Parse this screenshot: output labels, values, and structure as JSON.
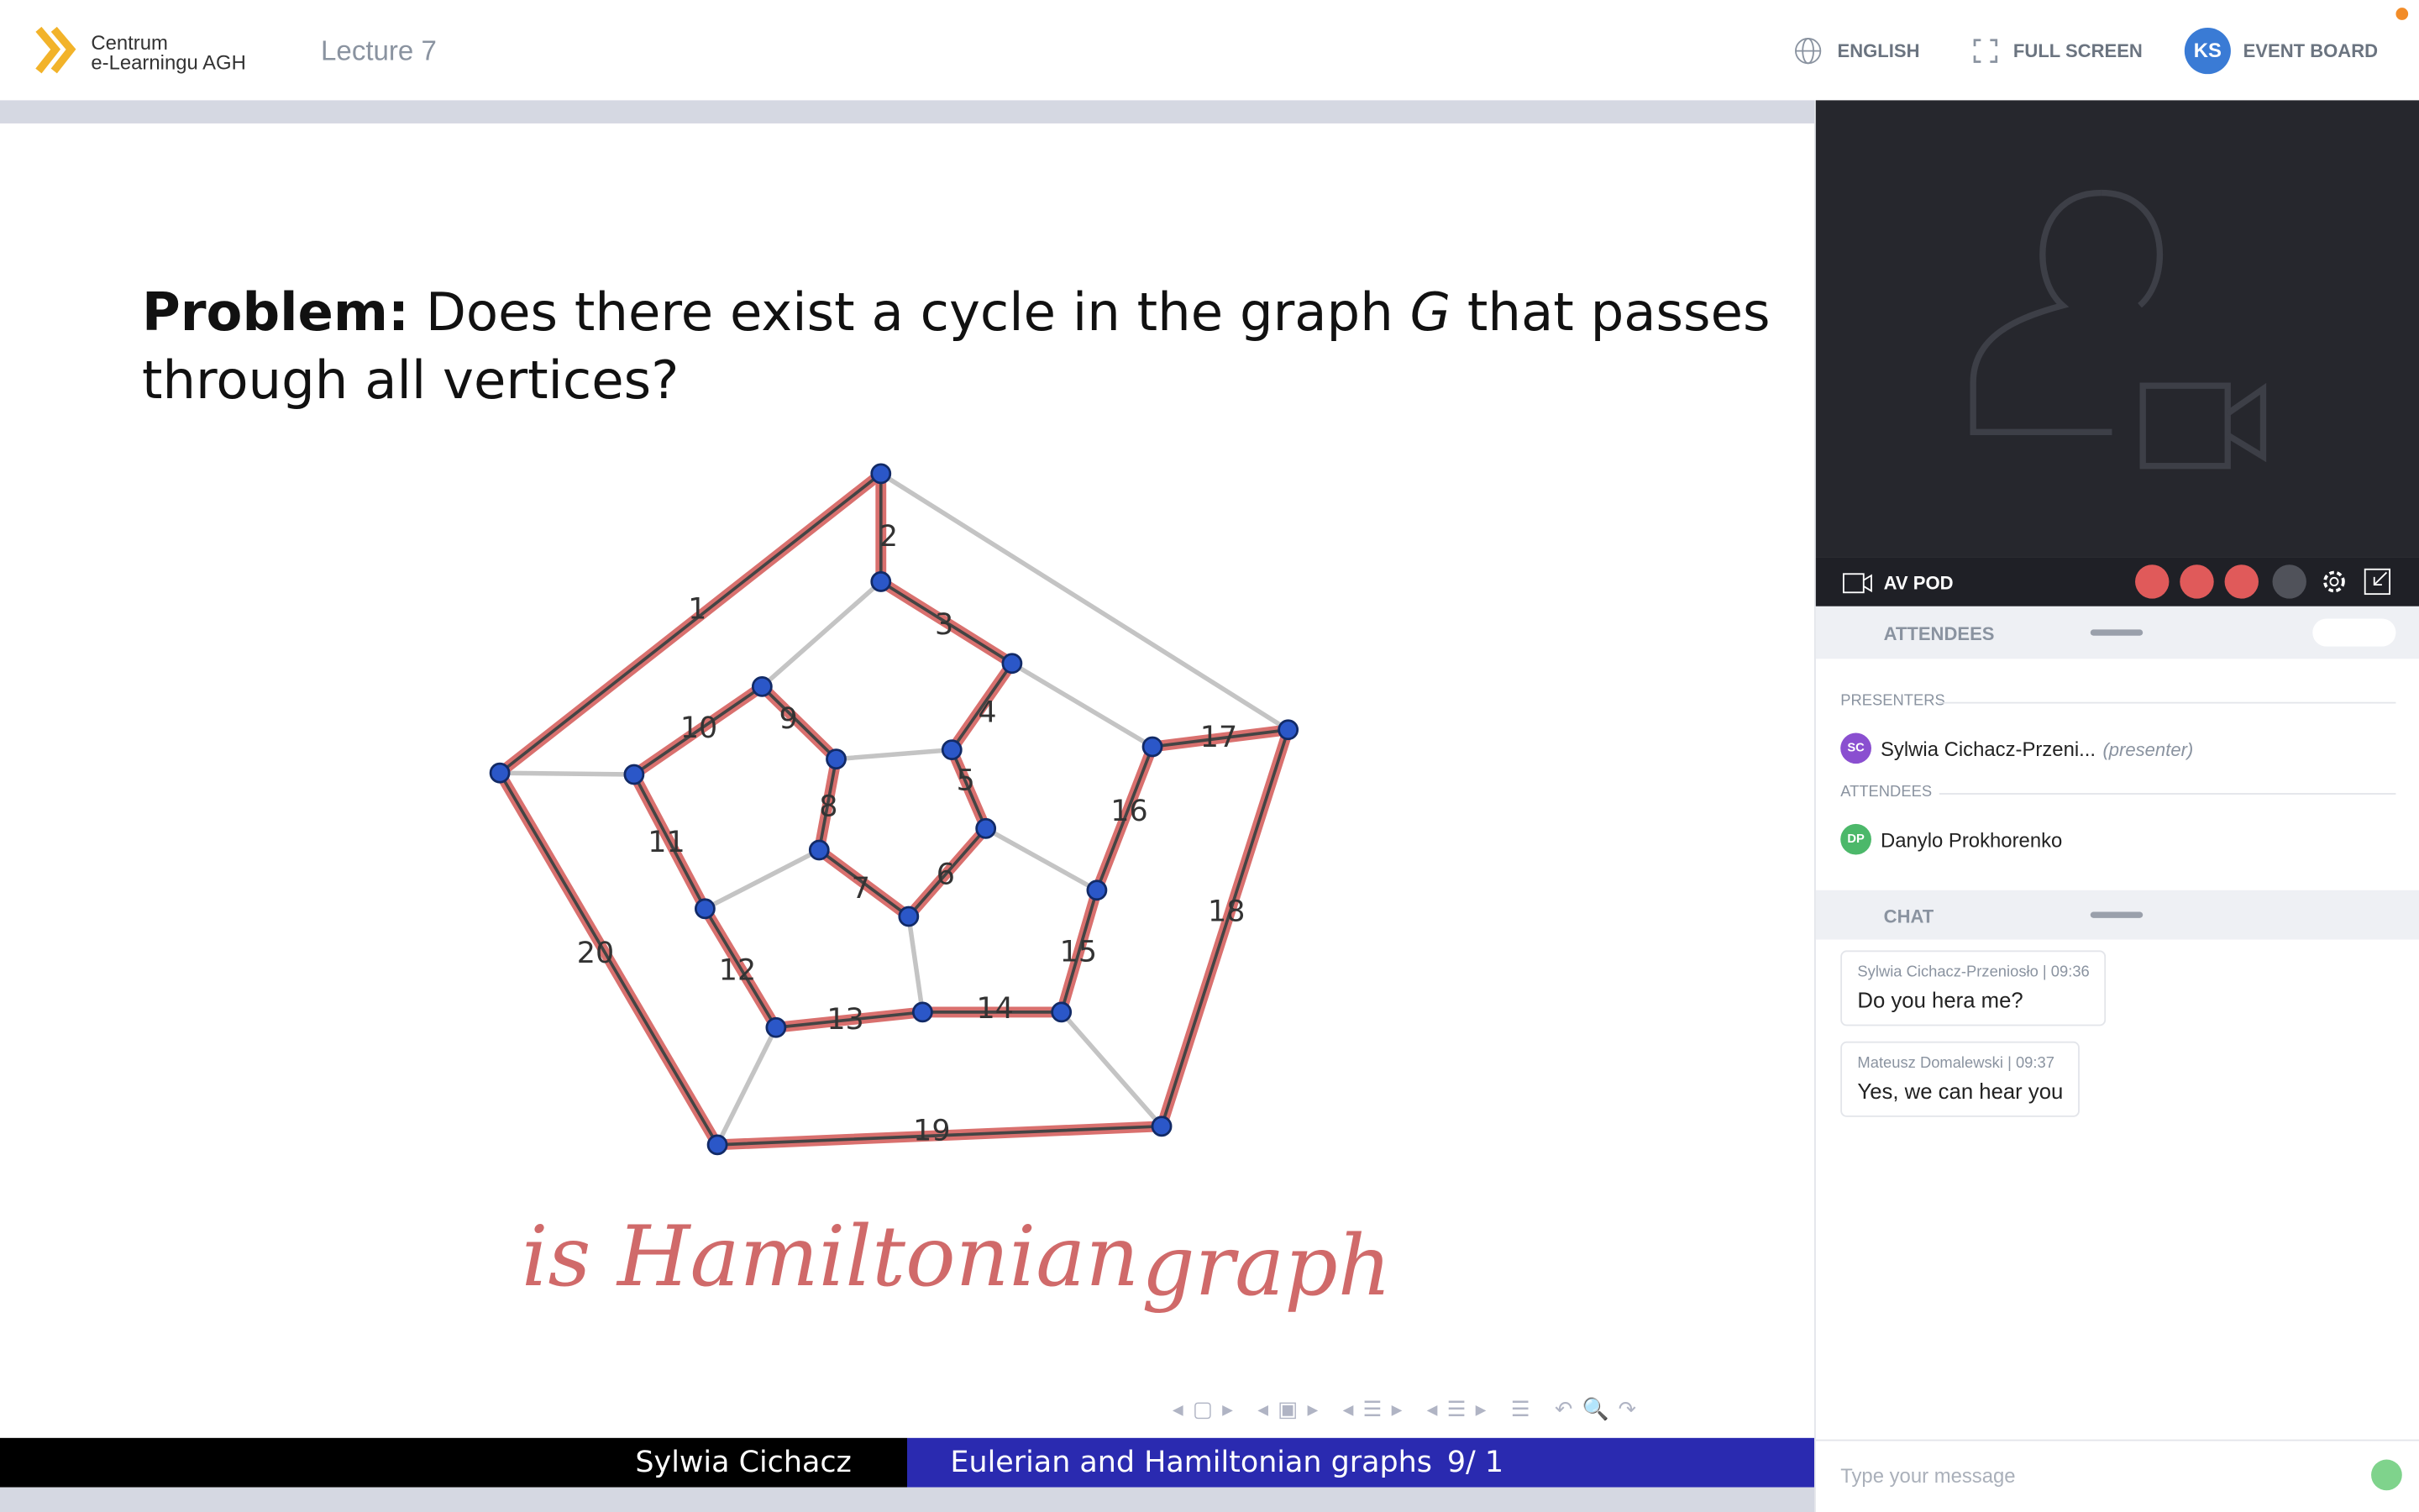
{
  "header": {
    "logo_line1": "Centrum",
    "logo_line2": "e-Learningu AGH",
    "title": "Lecture 7",
    "language": "ENGLISH",
    "fullscreen": "FULL SCREEN",
    "avatar": "KS",
    "event_board": "EVENT BOARD"
  },
  "slide": {
    "problem_label": "Problem:",
    "problem_text1": "Does there exist a cycle in the graph",
    "problem_var": "G",
    "problem_text2": "that passes",
    "problem_line2": "through all vertices?",
    "edge_labels": [
      "1",
      "2",
      "3",
      "4",
      "5",
      "6",
      "7",
      "8",
      "9",
      "10",
      "11",
      "12",
      "13",
      "14",
      "15",
      "16",
      "17",
      "18",
      "19",
      "20"
    ],
    "handwriting1": "is Hamiltonian",
    "handwriting2": "graph",
    "footer_author": "Sylwia Cichacz",
    "footer_title": "Eulerian and Hamiltonian graphs",
    "footer_page": "9/ 1"
  },
  "sidebar": {
    "av_pod": "AV POD",
    "attendees_title": "ATTENDEES",
    "presenters_heading": "PRESENTERS",
    "presenter": {
      "initials": "SC",
      "name": "Sylwia Cichacz-Przeni...",
      "role": "(presenter)"
    },
    "attendees_heading": "ATTENDEES",
    "attendee": {
      "initials": "DP",
      "name": "Danylo Prokhorenko"
    },
    "chat_title": "CHAT",
    "messages": [
      {
        "author": "Sylwia Cichacz-Przeniosło",
        "time": "09:36",
        "text": "Do you hera me?"
      },
      {
        "author": "Mateusz Domalewski",
        "time": "09:37",
        "text": "Yes, we can hear you"
      }
    ],
    "input_placeholder": "Type your message"
  }
}
